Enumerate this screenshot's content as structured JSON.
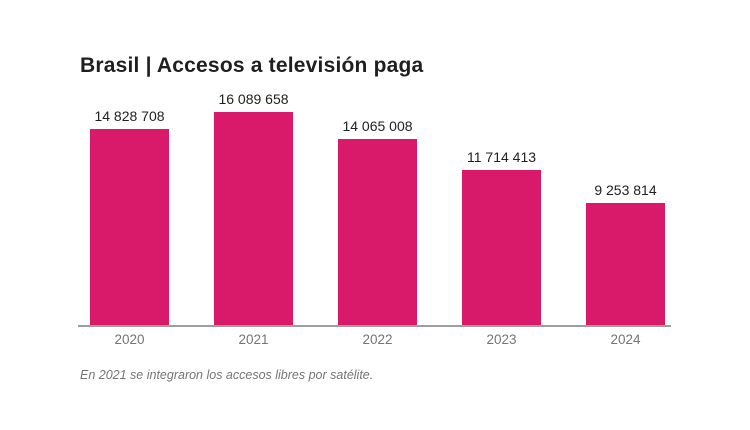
{
  "header": {
    "title": "Brasil | Accesos a televisión paga"
  },
  "chart_data": {
    "type": "bar",
    "title": "Brasil | Accesos a televisión paga",
    "categories": [
      "2020",
      "2021",
      "2022",
      "2023",
      "2024"
    ],
    "values": [
      14828708,
      16089658,
      14065008,
      11714413,
      9253814
    ],
    "value_labels": [
      "14 828 708",
      "16 089 658",
      "14 065 008",
      "11 714 413",
      "9 253 814"
    ],
    "xlabel": "",
    "ylabel": "",
    "ylim": [
      0,
      16089658
    ],
    "grid": false,
    "legend_position": "none",
    "data_labels": "above-bars"
  },
  "footnote": {
    "text": "En 2021 se integraron los accesos libres por satélite."
  },
  "colors": {
    "bar": "#d91a6b",
    "title": "#1f1f1f",
    "value_label": "#212121",
    "axis_line": "#9e9e9e",
    "tick_label": "#757575",
    "footnote": "#757575"
  }
}
